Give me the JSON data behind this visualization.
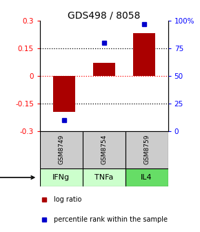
{
  "title": "GDS498 / 8058",
  "categories": [
    "GSM8749",
    "GSM8754",
    "GSM8759"
  ],
  "agents": [
    "IFNg",
    "TNFa",
    "IL4"
  ],
  "agent_colors": [
    "#ccffcc",
    "#ccffcc",
    "#66dd66"
  ],
  "log_ratios": [
    -0.195,
    0.07,
    0.235
  ],
  "percentile_ranks": [
    10,
    80,
    97
  ],
  "left_ylim": [
    -0.3,
    0.3
  ],
  "right_ylim": [
    0,
    100
  ],
  "left_yticks": [
    -0.3,
    -0.15,
    0,
    0.15,
    0.3
  ],
  "left_yticklabels": [
    "-0.3",
    "-0.15",
    "0",
    "0.15",
    "0.3"
  ],
  "right_yticks": [
    0,
    25,
    50,
    75,
    100
  ],
  "right_yticklabels": [
    "0",
    "25",
    "50",
    "75",
    "100%"
  ],
  "bar_color": "#aa0000",
  "dot_color": "#0000cc",
  "sample_bg": "#cccccc",
  "bar_width": 0.55
}
